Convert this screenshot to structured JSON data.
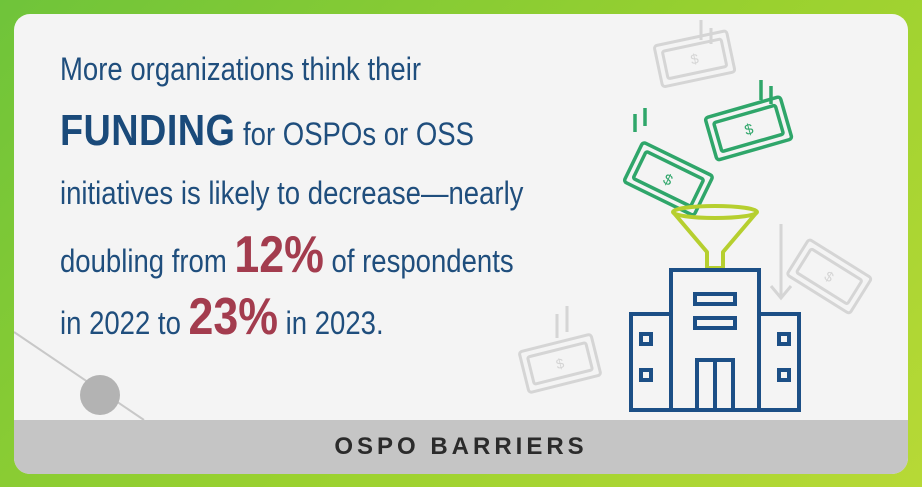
{
  "headline": {
    "line1": "More organizations think their",
    "line2_strong": "FUNDING",
    "line2_rest": " for OSPOs or OSS",
    "line3": "initiatives is likely to decrease—nearly",
    "line4_pre": "doubling from ",
    "pct_2022": "12%",
    "line4_post": " of respondents",
    "line5_pre": "in 2022 to ",
    "pct_2023": "23%",
    "line5_post": " in 2023."
  },
  "footer": {
    "label": "OSPO BARRIERS"
  },
  "icons": [
    "money-bill-icon",
    "funnel-icon",
    "building-icon"
  ],
  "colors": {
    "text_blue": "#1f4e7d",
    "accent_red": "#a33c4e",
    "money_green": "#2fa66a",
    "funnel_green": "#b6cf2f",
    "building_blue": "#1c4f86",
    "border_green": "#7ac943"
  }
}
